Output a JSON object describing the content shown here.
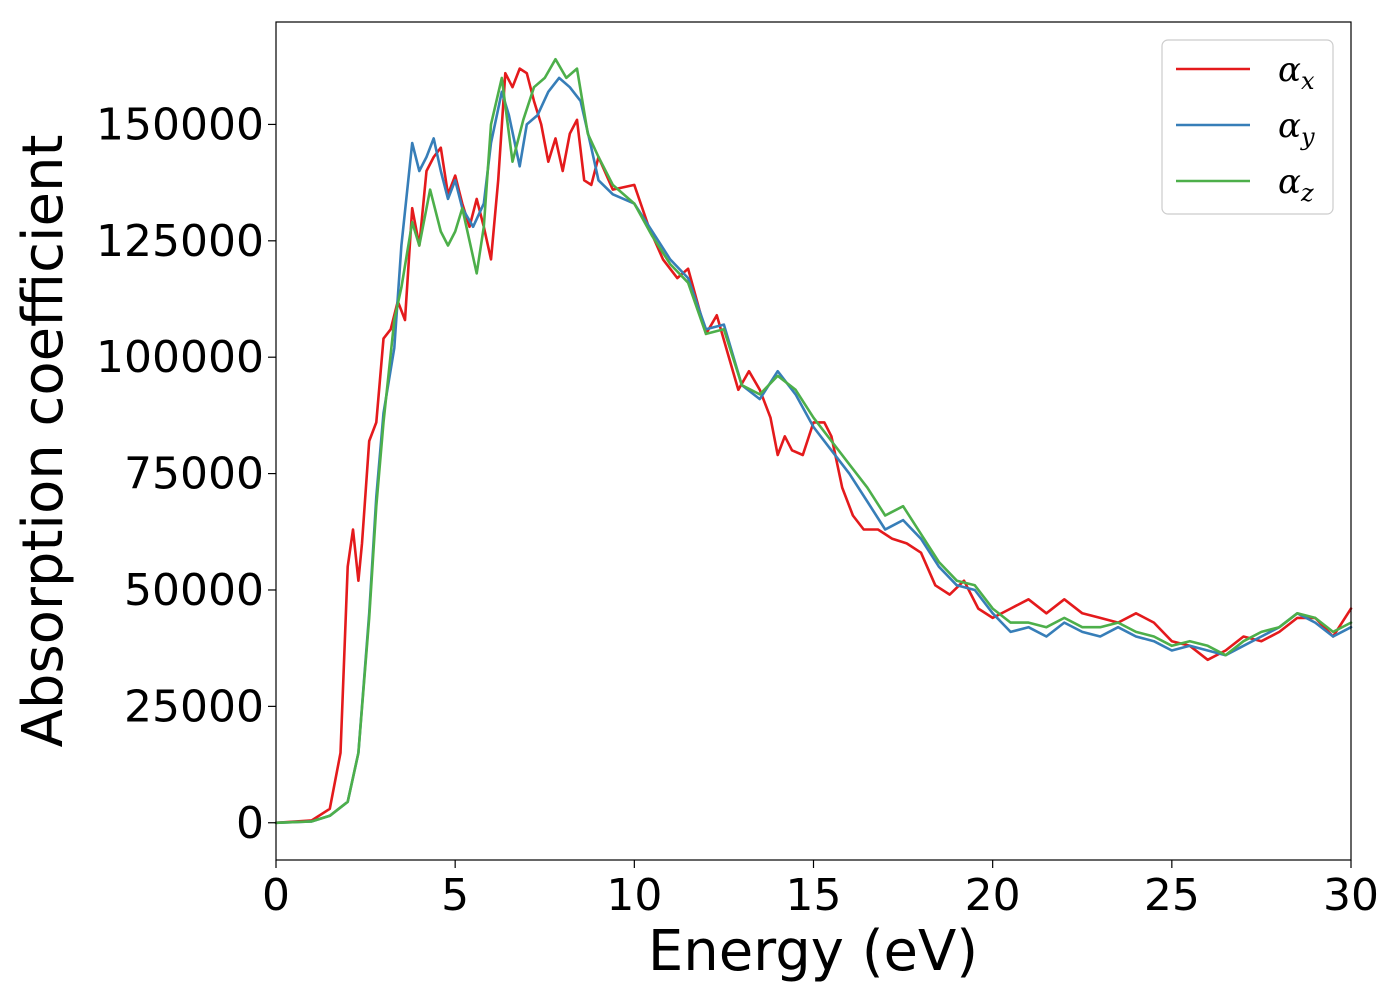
{
  "chart_data": {
    "type": "line",
    "title": "",
    "xlabel": "Energy (eV)",
    "ylabel": "Absorption coefficient",
    "xlim": [
      0,
      30
    ],
    "ylim": [
      -8000,
      172000
    ],
    "xticks": [
      0,
      5,
      10,
      15,
      20,
      25,
      30
    ],
    "yticks": [
      0,
      25000,
      50000,
      75000,
      100000,
      125000,
      150000
    ],
    "grid": false,
    "legend_position": "top-right",
    "series": [
      {
        "name": "α_x",
        "legend_base": "α",
        "legend_sub": "x",
        "color": "#e41a1c",
        "points": [
          [
            0,
            0
          ],
          [
            1.0,
            500
          ],
          [
            1.5,
            3000
          ],
          [
            1.8,
            15000
          ],
          [
            2.0,
            55000
          ],
          [
            2.15,
            63000
          ],
          [
            2.3,
            52000
          ],
          [
            2.4,
            60000
          ],
          [
            2.6,
            82000
          ],
          [
            2.8,
            86000
          ],
          [
            3.0,
            104000
          ],
          [
            3.2,
            106000
          ],
          [
            3.4,
            112000
          ],
          [
            3.6,
            108000
          ],
          [
            3.8,
            132000
          ],
          [
            4.0,
            124000
          ],
          [
            4.2,
            140000
          ],
          [
            4.4,
            143000
          ],
          [
            4.6,
            145000
          ],
          [
            4.8,
            135000
          ],
          [
            5.0,
            139000
          ],
          [
            5.2,
            133000
          ],
          [
            5.4,
            128000
          ],
          [
            5.6,
            134000
          ],
          [
            5.8,
            128000
          ],
          [
            6.0,
            121000
          ],
          [
            6.2,
            138000
          ],
          [
            6.4,
            161000
          ],
          [
            6.6,
            158000
          ],
          [
            6.8,
            162000
          ],
          [
            7.0,
            161000
          ],
          [
            7.2,
            155000
          ],
          [
            7.4,
            150000
          ],
          [
            7.6,
            142000
          ],
          [
            7.8,
            147000
          ],
          [
            8.0,
            140000
          ],
          [
            8.2,
            148000
          ],
          [
            8.4,
            151000
          ],
          [
            8.6,
            138000
          ],
          [
            8.8,
            137000
          ],
          [
            9.0,
            143000
          ],
          [
            9.4,
            136000
          ],
          [
            10.0,
            137000
          ],
          [
            10.4,
            128000
          ],
          [
            10.8,
            121000
          ],
          [
            11.2,
            117000
          ],
          [
            11.5,
            119000
          ],
          [
            12.0,
            105000
          ],
          [
            12.3,
            109000
          ],
          [
            12.6,
            101000
          ],
          [
            12.9,
            93000
          ],
          [
            13.2,
            97000
          ],
          [
            13.5,
            93000
          ],
          [
            13.8,
            87000
          ],
          [
            14.0,
            79000
          ],
          [
            14.2,
            83000
          ],
          [
            14.4,
            80000
          ],
          [
            14.7,
            79000
          ],
          [
            15.0,
            86000
          ],
          [
            15.3,
            86000
          ],
          [
            15.5,
            83000
          ],
          [
            15.8,
            72000
          ],
          [
            16.1,
            66000
          ],
          [
            16.4,
            63000
          ],
          [
            16.8,
            63000
          ],
          [
            17.2,
            61000
          ],
          [
            17.6,
            60000
          ],
          [
            18.0,
            58000
          ],
          [
            18.4,
            51000
          ],
          [
            18.8,
            49000
          ],
          [
            19.2,
            52000
          ],
          [
            19.6,
            46000
          ],
          [
            20.0,
            44000
          ],
          [
            20.5,
            46000
          ],
          [
            21.0,
            48000
          ],
          [
            21.5,
            45000
          ],
          [
            22.0,
            48000
          ],
          [
            22.5,
            45000
          ],
          [
            23.0,
            44000
          ],
          [
            23.5,
            43000
          ],
          [
            24.0,
            45000
          ],
          [
            24.5,
            43000
          ],
          [
            25.0,
            39000
          ],
          [
            25.5,
            38000
          ],
          [
            26.0,
            35000
          ],
          [
            26.5,
            37000
          ],
          [
            27.0,
            40000
          ],
          [
            27.5,
            39000
          ],
          [
            28.0,
            41000
          ],
          [
            28.5,
            44000
          ],
          [
            29.0,
            44000
          ],
          [
            29.5,
            40000
          ],
          [
            30.0,
            46000
          ]
        ]
      },
      {
        "name": "α_y",
        "legend_base": "α",
        "legend_sub": "y",
        "color": "#377eb8",
        "points": [
          [
            0,
            0
          ],
          [
            1.0,
            300
          ],
          [
            1.5,
            1500
          ],
          [
            2.0,
            4500
          ],
          [
            2.3,
            15000
          ],
          [
            2.6,
            45000
          ],
          [
            2.8,
            70000
          ],
          [
            3.0,
            88000
          ],
          [
            3.3,
            102000
          ],
          [
            3.5,
            124000
          ],
          [
            3.8,
            146000
          ],
          [
            4.0,
            140000
          ],
          [
            4.2,
            143000
          ],
          [
            4.4,
            147000
          ],
          [
            4.6,
            140000
          ],
          [
            4.8,
            134000
          ],
          [
            5.0,
            138000
          ],
          [
            5.2,
            132000
          ],
          [
            5.5,
            128000
          ],
          [
            5.8,
            133000
          ],
          [
            6.0,
            146000
          ],
          [
            6.3,
            157000
          ],
          [
            6.5,
            152000
          ],
          [
            6.8,
            141000
          ],
          [
            7.0,
            150000
          ],
          [
            7.3,
            152000
          ],
          [
            7.6,
            157000
          ],
          [
            7.9,
            160000
          ],
          [
            8.2,
            158000
          ],
          [
            8.5,
            155000
          ],
          [
            8.8,
            145000
          ],
          [
            9.0,
            138000
          ],
          [
            9.4,
            135000
          ],
          [
            10.0,
            133000
          ],
          [
            10.5,
            127000
          ],
          [
            11.0,
            121000
          ],
          [
            11.5,
            117000
          ],
          [
            12.0,
            106000
          ],
          [
            12.5,
            107000
          ],
          [
            13.0,
            94000
          ],
          [
            13.5,
            91000
          ],
          [
            14.0,
            97000
          ],
          [
            14.5,
            92000
          ],
          [
            15.0,
            85000
          ],
          [
            15.5,
            80000
          ],
          [
            16.0,
            75000
          ],
          [
            16.5,
            69000
          ],
          [
            17.0,
            63000
          ],
          [
            17.5,
            65000
          ],
          [
            18.0,
            61000
          ],
          [
            18.5,
            55000
          ],
          [
            19.0,
            51000
          ],
          [
            19.5,
            50000
          ],
          [
            20.0,
            45000
          ],
          [
            20.5,
            41000
          ],
          [
            21.0,
            42000
          ],
          [
            21.5,
            40000
          ],
          [
            22.0,
            43000
          ],
          [
            22.5,
            41000
          ],
          [
            23.0,
            40000
          ],
          [
            23.5,
            42000
          ],
          [
            24.0,
            40000
          ],
          [
            24.5,
            39000
          ],
          [
            25.0,
            37000
          ],
          [
            25.5,
            38000
          ],
          [
            26.0,
            37000
          ],
          [
            26.5,
            36000
          ],
          [
            27.0,
            38000
          ],
          [
            27.5,
            40000
          ],
          [
            28.0,
            42000
          ],
          [
            28.5,
            45000
          ],
          [
            29.0,
            43000
          ],
          [
            29.5,
            40000
          ],
          [
            30.0,
            42000
          ]
        ]
      },
      {
        "name": "α_z",
        "legend_base": "α",
        "legend_sub": "z",
        "color": "#4daf4a",
        "points": [
          [
            0,
            0
          ],
          [
            1.0,
            300
          ],
          [
            1.5,
            1500
          ],
          [
            2.0,
            4500
          ],
          [
            2.3,
            15000
          ],
          [
            2.6,
            44000
          ],
          [
            2.8,
            68000
          ],
          [
            3.0,
            86000
          ],
          [
            3.3,
            108000
          ],
          [
            3.5,
            115000
          ],
          [
            3.8,
            129000
          ],
          [
            4.0,
            124000
          ],
          [
            4.3,
            136000
          ],
          [
            4.6,
            127000
          ],
          [
            4.8,
            124000
          ],
          [
            5.0,
            127000
          ],
          [
            5.2,
            132000
          ],
          [
            5.4,
            125000
          ],
          [
            5.6,
            118000
          ],
          [
            5.8,
            128000
          ],
          [
            6.0,
            150000
          ],
          [
            6.3,
            160000
          ],
          [
            6.6,
            142000
          ],
          [
            6.9,
            151000
          ],
          [
            7.2,
            158000
          ],
          [
            7.5,
            160000
          ],
          [
            7.8,
            164000
          ],
          [
            8.1,
            160000
          ],
          [
            8.4,
            162000
          ],
          [
            8.7,
            148000
          ],
          [
            9.0,
            143000
          ],
          [
            9.4,
            137000
          ],
          [
            10.0,
            133000
          ],
          [
            10.5,
            126000
          ],
          [
            11.0,
            120000
          ],
          [
            11.5,
            116000
          ],
          [
            12.0,
            105000
          ],
          [
            12.5,
            106000
          ],
          [
            13.0,
            94000
          ],
          [
            13.5,
            92000
          ],
          [
            14.0,
            96000
          ],
          [
            14.5,
            93000
          ],
          [
            15.0,
            87000
          ],
          [
            15.5,
            82000
          ],
          [
            16.0,
            77000
          ],
          [
            16.5,
            72000
          ],
          [
            17.0,
            66000
          ],
          [
            17.5,
            68000
          ],
          [
            18.0,
            62000
          ],
          [
            18.5,
            56000
          ],
          [
            19.0,
            52000
          ],
          [
            19.5,
            51000
          ],
          [
            20.0,
            46000
          ],
          [
            20.5,
            43000
          ],
          [
            21.0,
            43000
          ],
          [
            21.5,
            42000
          ],
          [
            22.0,
            44000
          ],
          [
            22.5,
            42000
          ],
          [
            23.0,
            42000
          ],
          [
            23.5,
            43000
          ],
          [
            24.0,
            41000
          ],
          [
            24.5,
            40000
          ],
          [
            25.0,
            38000
          ],
          [
            25.5,
            39000
          ],
          [
            26.0,
            38000
          ],
          [
            26.5,
            36000
          ],
          [
            27.0,
            39000
          ],
          [
            27.5,
            41000
          ],
          [
            28.0,
            42000
          ],
          [
            28.5,
            45000
          ],
          [
            29.0,
            44000
          ],
          [
            29.5,
            41000
          ],
          [
            30.0,
            43000
          ]
        ]
      }
    ]
  }
}
